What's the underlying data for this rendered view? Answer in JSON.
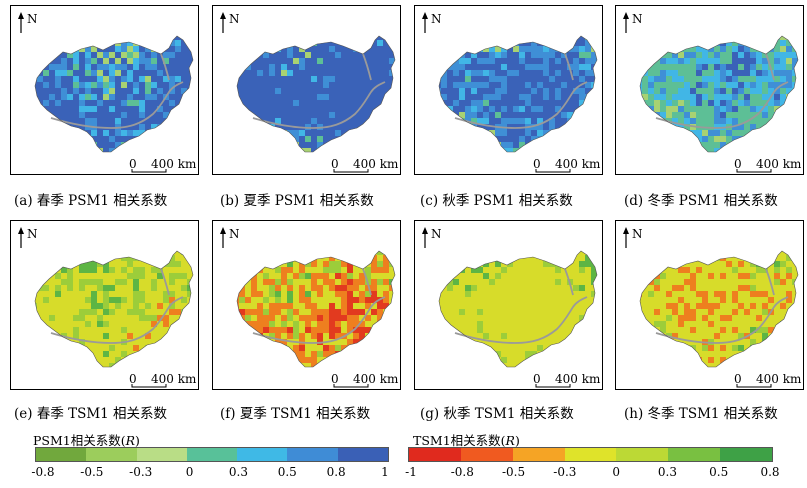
{
  "north_label": "N",
  "scale_zero": "0",
  "scale_text": "400 km",
  "panels": [
    {
      "caption": "(a) 春季 PSM1 相关系数",
      "palette": "psm",
      "mix": [
        0.05,
        0.08,
        0.12,
        0.2,
        0.55
      ]
    },
    {
      "caption": "(b) 夏季 PSM1 相关系数",
      "palette": "psm",
      "mix": [
        0.02,
        0.03,
        0.05,
        0.12,
        0.78
      ]
    },
    {
      "caption": "(c) 秋季 PSM1 相关系数",
      "palette": "psm",
      "mix": [
        0.03,
        0.05,
        0.12,
        0.3,
        0.5
      ]
    },
    {
      "caption": "(d) 冬季 PSM1 相关系数",
      "palette": "psm",
      "mix": [
        0.1,
        0.38,
        0.22,
        0.2,
        0.1
      ]
    },
    {
      "caption": "(e) 春季 TSM1 相关系数",
      "palette": "tsm",
      "mix": [
        0.0,
        0.02,
        0.6,
        0.28,
        0.1
      ]
    },
    {
      "caption": "(f) 夏季 TSM1 相关系数",
      "palette": "tsm",
      "mix": [
        0.15,
        0.35,
        0.3,
        0.15,
        0.05
      ]
    },
    {
      "caption": "(g) 秋季 TSM1 相关系数",
      "palette": "tsm",
      "mix": [
        0.0,
        0.0,
        0.82,
        0.15,
        0.03
      ]
    },
    {
      "caption": "(h) 冬季 TSM1 相关系数",
      "palette": "tsm",
      "mix": [
        0.0,
        0.25,
        0.6,
        0.12,
        0.03
      ]
    }
  ],
  "palettes": {
    "psm": [
      "#a8d272",
      "#5dbf96",
      "#41b6e6",
      "#3f8fd6",
      "#3a62b8"
    ],
    "tsm": [
      "#e23a1f",
      "#ee7f1f",
      "#d7dc2a",
      "#9ccd3a",
      "#5db544"
    ]
  },
  "legends": {
    "psm": {
      "title_prefix": "PSM1相关系数(",
      "title_var": "R",
      "title_suffix": ")",
      "colors": [
        "#71a83d",
        "#9ccd5c",
        "#b9dd86",
        "#58c199",
        "#3fb9e6",
        "#3f8cd6",
        "#3a60b6"
      ],
      "ticks": [
        "-0.8",
        "-0.5",
        "-0.3",
        "0",
        "0.3",
        "0.5",
        "0.8",
        "1"
      ]
    },
    "tsm": {
      "title_prefix": "TSM1相关系数(",
      "title_var": "R",
      "title_suffix": ")",
      "colors": [
        "#e02a1e",
        "#f05a20",
        "#f5a425",
        "#dfe32a",
        "#bcd935",
        "#79c041",
        "#3ea146"
      ],
      "ticks": [
        "-1",
        "-0.8",
        "-0.5",
        "-0.3",
        "0",
        "0.3",
        "0.5",
        "0.8"
      ]
    }
  }
}
